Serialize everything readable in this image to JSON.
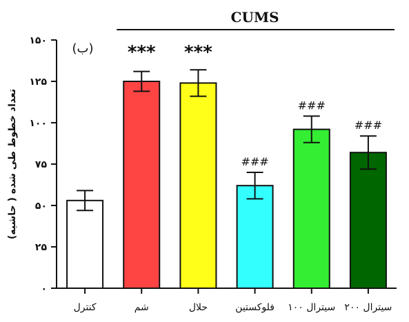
{
  "chart_data": {
    "type": "bar",
    "panel_label": "(ب)",
    "group_label": "CUMS",
    "ylabel": "تعداد خطوط طی شده ( حاشیه)",
    "ylim": [
      0,
      150
    ],
    "yticks": [
      0,
      25,
      50,
      75,
      100,
      125,
      150
    ],
    "ytick_labels": [
      "۰",
      "۲۵",
      "۵۰",
      "۷۵",
      "۱۰۰",
      "۱۲۵",
      "۱۵۰"
    ],
    "categories": [
      "کنترل",
      "شم",
      "حلال",
      "فلوکستین",
      "سیترال ۱۰۰",
      "سیترال ۲۰۰"
    ],
    "values": [
      53,
      125,
      124,
      62,
      96,
      82
    ],
    "errors": [
      6,
      6,
      8,
      8,
      8,
      10
    ],
    "colors": [
      "#ffffff",
      "#ff4444",
      "#ffff1a",
      "#33ffff",
      "#33ee33",
      "#006600"
    ],
    "significance": [
      "",
      "***",
      "***",
      "###",
      "###",
      "###"
    ],
    "grid": false
  }
}
